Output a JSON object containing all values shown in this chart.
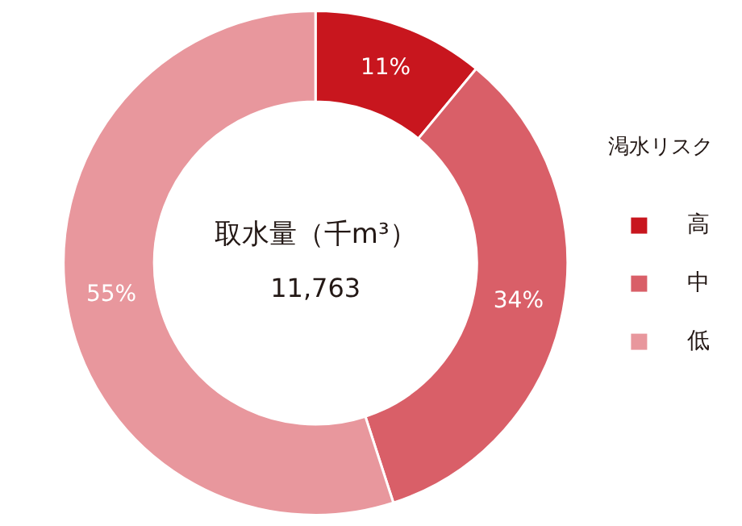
{
  "chart_data": {
    "type": "donut",
    "title": "取水量（千m³）",
    "annotations": [
      "11,763"
    ],
    "legend_title": "渇水リスク",
    "legend": "right",
    "categories": [
      "高",
      "中",
      "低"
    ],
    "values": [
      11,
      34,
      55
    ],
    "colors": [
      "#c8161e",
      "#d95f68",
      "#e8979d"
    ],
    "value_labels": [
      "11%",
      "34%",
      "55%"
    ]
  }
}
